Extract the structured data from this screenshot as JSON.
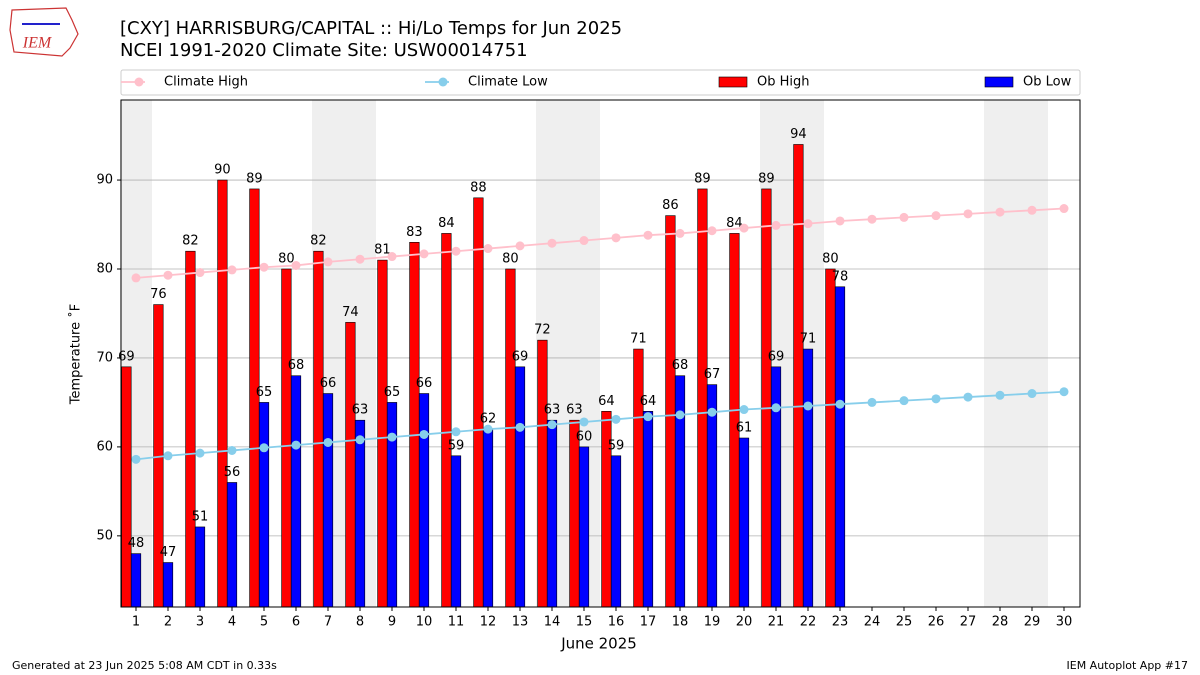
{
  "chart_data": {
    "type": "bar",
    "logo": "IEM",
    "title": "[CXY] HARRISBURG/CAPITAL :: Hi/Lo Temps for Jun 2025",
    "subtitle": "NCEI 1991-2020 Climate Site: USW00014751",
    "x_label": "June 2025",
    "y_label": "Temperature ˚F",
    "footer_left": "Generated at 23 Jun 2025 5:08 AM CDT in 0.33s",
    "footer_right": "IEM Autoplot App #17",
    "categories": [
      "1",
      "2",
      "3",
      "4",
      "5",
      "6",
      "7",
      "8",
      "9",
      "10",
      "11",
      "12",
      "13",
      "14",
      "15",
      "16",
      "17",
      "18",
      "19",
      "20",
      "21",
      "22",
      "23",
      "24",
      "25",
      "26",
      "27",
      "28",
      "29",
      "30"
    ],
    "ylim": [
      42,
      99
    ],
    "yticks": [
      50,
      60,
      70,
      80,
      90
    ],
    "grid": true,
    "series": [
      {
        "name": "Climate High",
        "type": "line",
        "color": "#ffc0cb",
        "values": [
          79.0,
          79.3,
          79.6,
          79.9,
          80.2,
          80.4,
          80.8,
          81.1,
          81.4,
          81.7,
          82.0,
          82.3,
          82.6,
          82.9,
          83.2,
          83.5,
          83.8,
          84.0,
          84.3,
          84.6,
          84.9,
          85.1,
          85.4,
          85.6,
          85.8,
          86.0,
          86.2,
          86.4,
          86.6,
          86.8
        ]
      },
      {
        "name": "Climate Low",
        "type": "line",
        "color": "#87ceeb",
        "values": [
          58.6,
          59.0,
          59.3,
          59.6,
          59.9,
          60.2,
          60.5,
          60.8,
          61.1,
          61.4,
          61.7,
          62.0,
          62.2,
          62.5,
          62.8,
          63.1,
          63.4,
          63.6,
          63.9,
          64.2,
          64.4,
          64.6,
          64.8,
          65.0,
          65.2,
          65.4,
          65.6,
          65.8,
          66.0,
          66.2
        ]
      },
      {
        "name": "Ob High",
        "type": "bar",
        "color": "#ff0000",
        "values": [
          69,
          76,
          82,
          90,
          89,
          80,
          82,
          74,
          81,
          83,
          84,
          88,
          80,
          72,
          63,
          64,
          71,
          86,
          89,
          84,
          89,
          94,
          80,
          null,
          null,
          null,
          null,
          null,
          null,
          null
        ]
      },
      {
        "name": "Ob Low",
        "type": "bar",
        "color": "#0000ff",
        "values": [
          48,
          47,
          51,
          56,
          65,
          68,
          66,
          63,
          65,
          66,
          59,
          62,
          69,
          63,
          60,
          59,
          64,
          68,
          67,
          61,
          69,
          71,
          78,
          null,
          null,
          null,
          null,
          null,
          null,
          null
        ]
      }
    ]
  }
}
